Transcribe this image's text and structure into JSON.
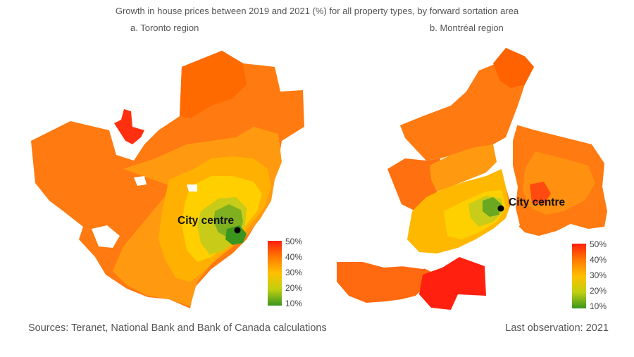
{
  "title": "Growth in house prices between 2019 and 2021 (%) for all property types, by forward sortation area",
  "panels": [
    {
      "subtitle": "a. Toronto region",
      "city_label": "City centre"
    },
    {
      "subtitle": "b. Montréal region",
      "city_label": "City centre"
    }
  ],
  "legend": {
    "ticks": [
      "50%",
      "40%",
      "30%",
      "20%",
      "10%"
    ],
    "colors": {
      "high": "#ff2a10",
      "upper": "#ff7a00",
      "mid": "#ffc000",
      "lower": "#c8d010",
      "low": "#3f9a1f"
    }
  },
  "footer": {
    "sources": "Sources: Teranet, National Bank and Bank of Canada calculations",
    "last_observation": "Last observation: 2021"
  }
}
